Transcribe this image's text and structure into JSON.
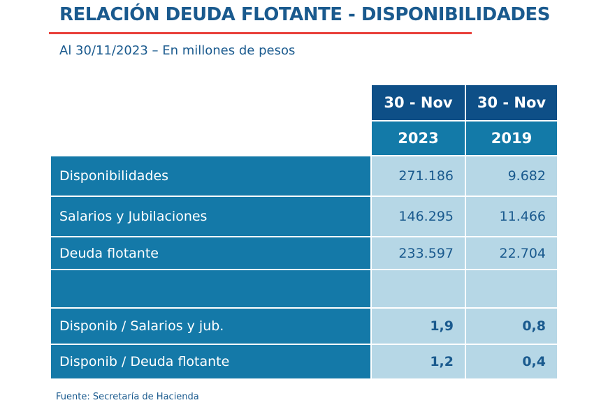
{
  "title": "RELACIÓN DEUDA FLOTANTE - DISPONIBILIDADES",
  "subtitle": "Al 30/11/2023 – En millones de pesos",
  "colors": {
    "title": "#1a5a8e",
    "accent_line": "#e8403a",
    "header_dark": "#0e4f87",
    "header_mid": "#137aa8",
    "label_cell": "#1479a8",
    "value_cell": "#b6d7e6"
  },
  "table": {
    "columns": [
      {
        "line1": "30 - Nov",
        "line2": "2023"
      },
      {
        "line1": "30 - Nov",
        "line2": "2019"
      }
    ],
    "rows": [
      {
        "label": "Disponibilidades",
        "values": [
          "271.186",
          "9.682"
        ]
      },
      {
        "label": "Salarios y Jubilaciones",
        "values": [
          "146.295",
          "11.466"
        ]
      },
      {
        "label": "Deuda flotante",
        "values": [
          "233.597",
          "22.704"
        ]
      },
      {
        "label": "",
        "values": [
          "",
          ""
        ]
      },
      {
        "label": "Disponib / Salarios y jub.",
        "values": [
          "1,9",
          "0,8"
        ]
      },
      {
        "label": "Disponib / Deuda flotante",
        "values": [
          "1,2",
          "0,4"
        ]
      }
    ]
  },
  "footer": "Fuente: Secretaría de Hacienda"
}
